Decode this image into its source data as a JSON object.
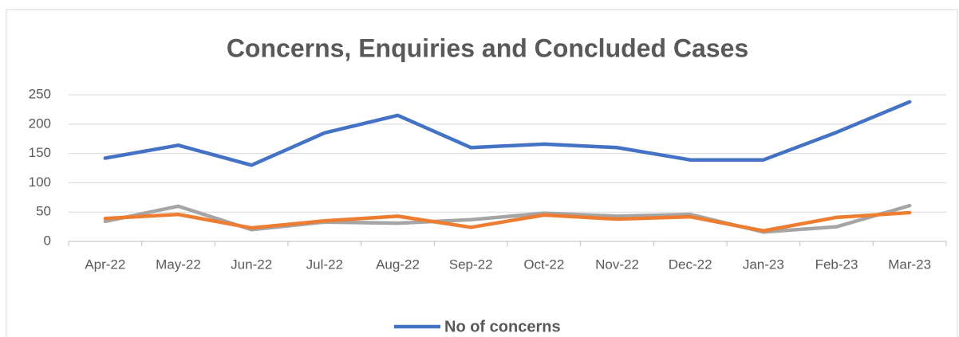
{
  "chart_data": {
    "type": "line",
    "title": "Concerns, Enquiries and Concluded Cases",
    "categories": [
      "Apr-22",
      "May-22",
      "Jun-22",
      "Jul-22",
      "Aug-22",
      "Sep-22",
      "Oct-22",
      "Nov-22",
      "Dec-22",
      "Jan-23",
      "Feb-23",
      "Mar-23"
    ],
    "series": [
      {
        "name": "No of concerns",
        "color": "#4472c4",
        "values": [
          142,
          164,
          130,
          185,
          215,
          160,
          166,
          160,
          139,
          139,
          186,
          238
        ]
      },
      {
        "color": "#ed7d31",
        "values": [
          39,
          46,
          23,
          35,
          43,
          24,
          45,
          38,
          42,
          18,
          41,
          49
        ]
      },
      {
        "color": "#a5a5a5",
        "values": [
          34,
          60,
          20,
          33,
          31,
          37,
          48,
          43,
          46,
          16,
          25,
          61
        ]
      }
    ],
    "ylim": [
      0,
      250
    ],
    "yticks": [
      0,
      50,
      100,
      150,
      200,
      250
    ],
    "grid": true,
    "legend": "bottom"
  }
}
